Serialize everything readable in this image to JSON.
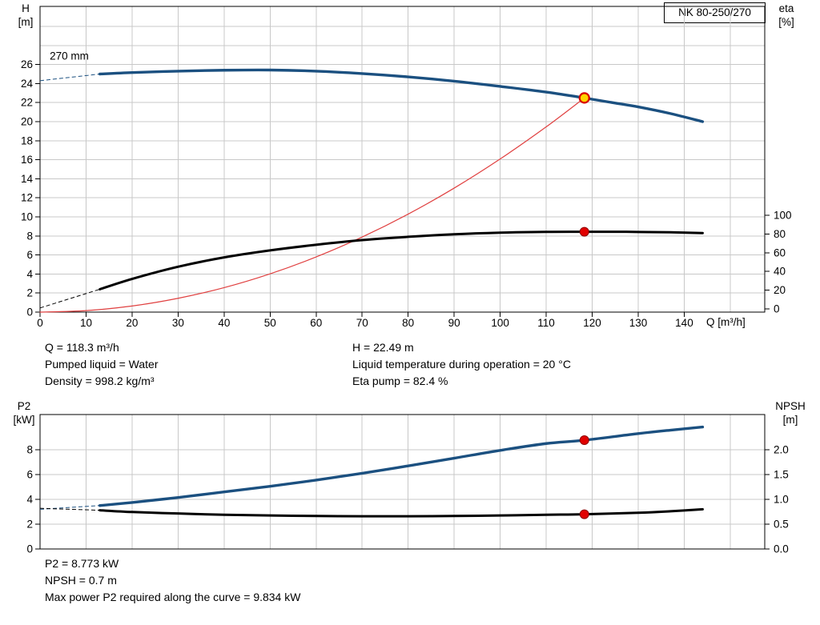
{
  "readouts": {
    "mid_left": [
      "Q = 118.3 m³/h",
      "Pumped liquid = Water",
      "Density = 998.2 kg/m³"
    ],
    "mid_right": [
      "H = 22.49 m",
      "Liquid temperature during operation = 20 °C",
      "Eta pump = 82.4 %"
    ],
    "bottom": [
      "P2 = 8.773 kW",
      "NPSH = 0.7 m",
      "Max power P2 required along the curve = 9.834 kW"
    ]
  },
  "chart_data": [
    {
      "type": "line",
      "title": "NK 80-250/270",
      "x_axis": {
        "label": "Q [m³/h]",
        "min": 0,
        "max": 157.5,
        "ticks": [
          0,
          10,
          20,
          30,
          40,
          50,
          60,
          70,
          80,
          90,
          100,
          110,
          120,
          130,
          140
        ],
        "grid": [
          10,
          20,
          30,
          40,
          50,
          60,
          70,
          80,
          90,
          100,
          110,
          120,
          130,
          140,
          150
        ]
      },
      "y_left": {
        "label": "H [m]",
        "label_lines": [
          "H",
          "[m]"
        ],
        "min": 0,
        "max": 32.1,
        "ticks": [
          0,
          2,
          4,
          6,
          8,
          10,
          12,
          14,
          16,
          18,
          20,
          22,
          24,
          26
        ],
        "grid": [
          2,
          4,
          6,
          8,
          10,
          12,
          14,
          16,
          18,
          20,
          22,
          24,
          26,
          28,
          30
        ]
      },
      "y_right": {
        "label": "eta [%]",
        "label_lines": [
          "eta",
          "[%]"
        ],
        "min": 0,
        "max": 100,
        "ticks": [
          0,
          20,
          40,
          60,
          80,
          100
        ]
      },
      "annotations": [
        {
          "text": "270 mm",
          "x": 2.1,
          "y": 26.5,
          "axis": "left"
        }
      ],
      "series": [
        {
          "name": "system-curve",
          "axis": "left",
          "color": "#e04040",
          "width": 1.2,
          "points": [
            [
              0,
              0
            ],
            [
              10,
              0.16
            ],
            [
              20,
              0.64
            ],
            [
              30,
              1.45
            ],
            [
              40,
              2.57
            ],
            [
              50,
              4.02
            ],
            [
              60,
              5.79
            ],
            [
              70,
              7.88
            ],
            [
              80,
              10.29
            ],
            [
              90,
              13.02
            ],
            [
              100,
              16.08
            ],
            [
              110,
              19.45
            ],
            [
              118.3,
              22.49
            ]
          ]
        },
        {
          "name": "eta-curve",
          "axis": "right",
          "color": "#000000",
          "width": 3,
          "lead": [
            [
              0,
              1
            ],
            [
              13,
              21
            ]
          ],
          "points": [
            [
              13,
              21
            ],
            [
              20,
              32
            ],
            [
              30,
              45
            ],
            [
              40,
              55
            ],
            [
              50,
              62.5
            ],
            [
              60,
              68.5
            ],
            [
              70,
              73.5
            ],
            [
              80,
              77
            ],
            [
              90,
              79.7
            ],
            [
              100,
              81.4
            ],
            [
              110,
              82.3
            ],
            [
              118.3,
              82.4
            ],
            [
              125,
              82.4
            ],
            [
              130,
              82.2
            ],
            [
              137,
              81.8
            ],
            [
              144,
              81
            ]
          ]
        },
        {
          "name": "pump-curve-270mm",
          "axis": "left",
          "color": "#1b5080",
          "width": 3.4,
          "lead": [
            [
              0,
              24.3
            ],
            [
              13,
              25.0
            ]
          ],
          "points": [
            [
              13,
              25.0
            ],
            [
              20,
              25.15
            ],
            [
              30,
              25.3
            ],
            [
              40,
              25.4
            ],
            [
              50,
              25.42
            ],
            [
              60,
              25.3
            ],
            [
              70,
              25.05
            ],
            [
              80,
              24.7
            ],
            [
              90,
              24.25
            ],
            [
              100,
              23.7
            ],
            [
              110,
              23.1
            ],
            [
              118.3,
              22.49
            ],
            [
              125,
              21.95
            ],
            [
              130,
              21.55
            ],
            [
              137,
              20.85
            ],
            [
              144,
              20.0
            ]
          ]
        }
      ],
      "markers": [
        {
          "name": "eta-point",
          "axis": "right",
          "x": 118.3,
          "y": 82.4,
          "r": 5.5,
          "fill": "#e10000",
          "stroke": "#8f0000",
          "stroke_width": 1
        },
        {
          "name": "duty-point",
          "axis": "left",
          "x": 118.3,
          "y": 22.49,
          "r": 6,
          "fill": "#ffd400",
          "stroke": "#d80000",
          "stroke_width": 2.2
        }
      ]
    },
    {
      "type": "line",
      "title": "",
      "x_axis": {
        "label": "",
        "min": 0,
        "max": 157.5,
        "ticks": [],
        "grid": [
          10,
          20,
          30,
          40,
          50,
          60,
          70,
          80,
          90,
          100,
          110,
          120,
          130,
          140,
          150
        ]
      },
      "y_left": {
        "label": "P2 [kW]",
        "label_lines": [
          "P2",
          "[kW]"
        ],
        "min": 0,
        "max": 10.8,
        "ticks": [
          0,
          2,
          4,
          6,
          8
        ],
        "grid": [
          2,
          4,
          6,
          8
        ]
      },
      "y_right": {
        "label": "NPSH [m]",
        "label_lines": [
          "NPSH",
          "[m]"
        ],
        "min": 0,
        "max": 2.7,
        "ticks": [
          "0.0",
          "0.5",
          "1.0",
          "1.5",
          "2.0"
        ]
      },
      "annotations": [],
      "series": [
        {
          "name": "p2-curve",
          "axis": "left",
          "color": "#1b5080",
          "width": 3.4,
          "lead": [
            [
              0,
              3.2
            ],
            [
              13,
              3.5
            ]
          ],
          "points": [
            [
              13,
              3.5
            ],
            [
              20,
              3.75
            ],
            [
              30,
              4.15
            ],
            [
              40,
              4.6
            ],
            [
              50,
              5.05
            ],
            [
              60,
              5.55
            ],
            [
              70,
              6.1
            ],
            [
              80,
              6.7
            ],
            [
              90,
              7.32
            ],
            [
              100,
              7.95
            ],
            [
              110,
              8.5
            ],
            [
              118.3,
              8.773
            ],
            [
              130,
              9.3
            ],
            [
              137,
              9.58
            ],
            [
              144,
              9.834
            ]
          ]
        },
        {
          "name": "npsh-curve",
          "axis": "right",
          "color": "#000000",
          "width": 3,
          "lead": [
            [
              0,
              0.82
            ],
            [
              13,
              0.78
            ]
          ],
          "points": [
            [
              13,
              0.78
            ],
            [
              20,
              0.745
            ],
            [
              30,
              0.715
            ],
            [
              40,
              0.69
            ],
            [
              50,
              0.675
            ],
            [
              60,
              0.665
            ],
            [
              70,
              0.66
            ],
            [
              80,
              0.66
            ],
            [
              90,
              0.665
            ],
            [
              100,
              0.675
            ],
            [
              110,
              0.69
            ],
            [
              118.3,
              0.7
            ],
            [
              130,
              0.73
            ],
            [
              137,
              0.76
            ],
            [
              144,
              0.8
            ]
          ]
        }
      ],
      "markers": [
        {
          "name": "p2-point",
          "axis": "left",
          "x": 118.3,
          "y": 8.773,
          "r": 5.5,
          "fill": "#e10000",
          "stroke": "#8f0000",
          "stroke_width": 1
        },
        {
          "name": "npsh-point",
          "axis": "right",
          "x": 118.3,
          "y": 0.7,
          "r": 5.5,
          "fill": "#e10000",
          "stroke": "#8f0000",
          "stroke_width": 1
        }
      ]
    }
  ]
}
